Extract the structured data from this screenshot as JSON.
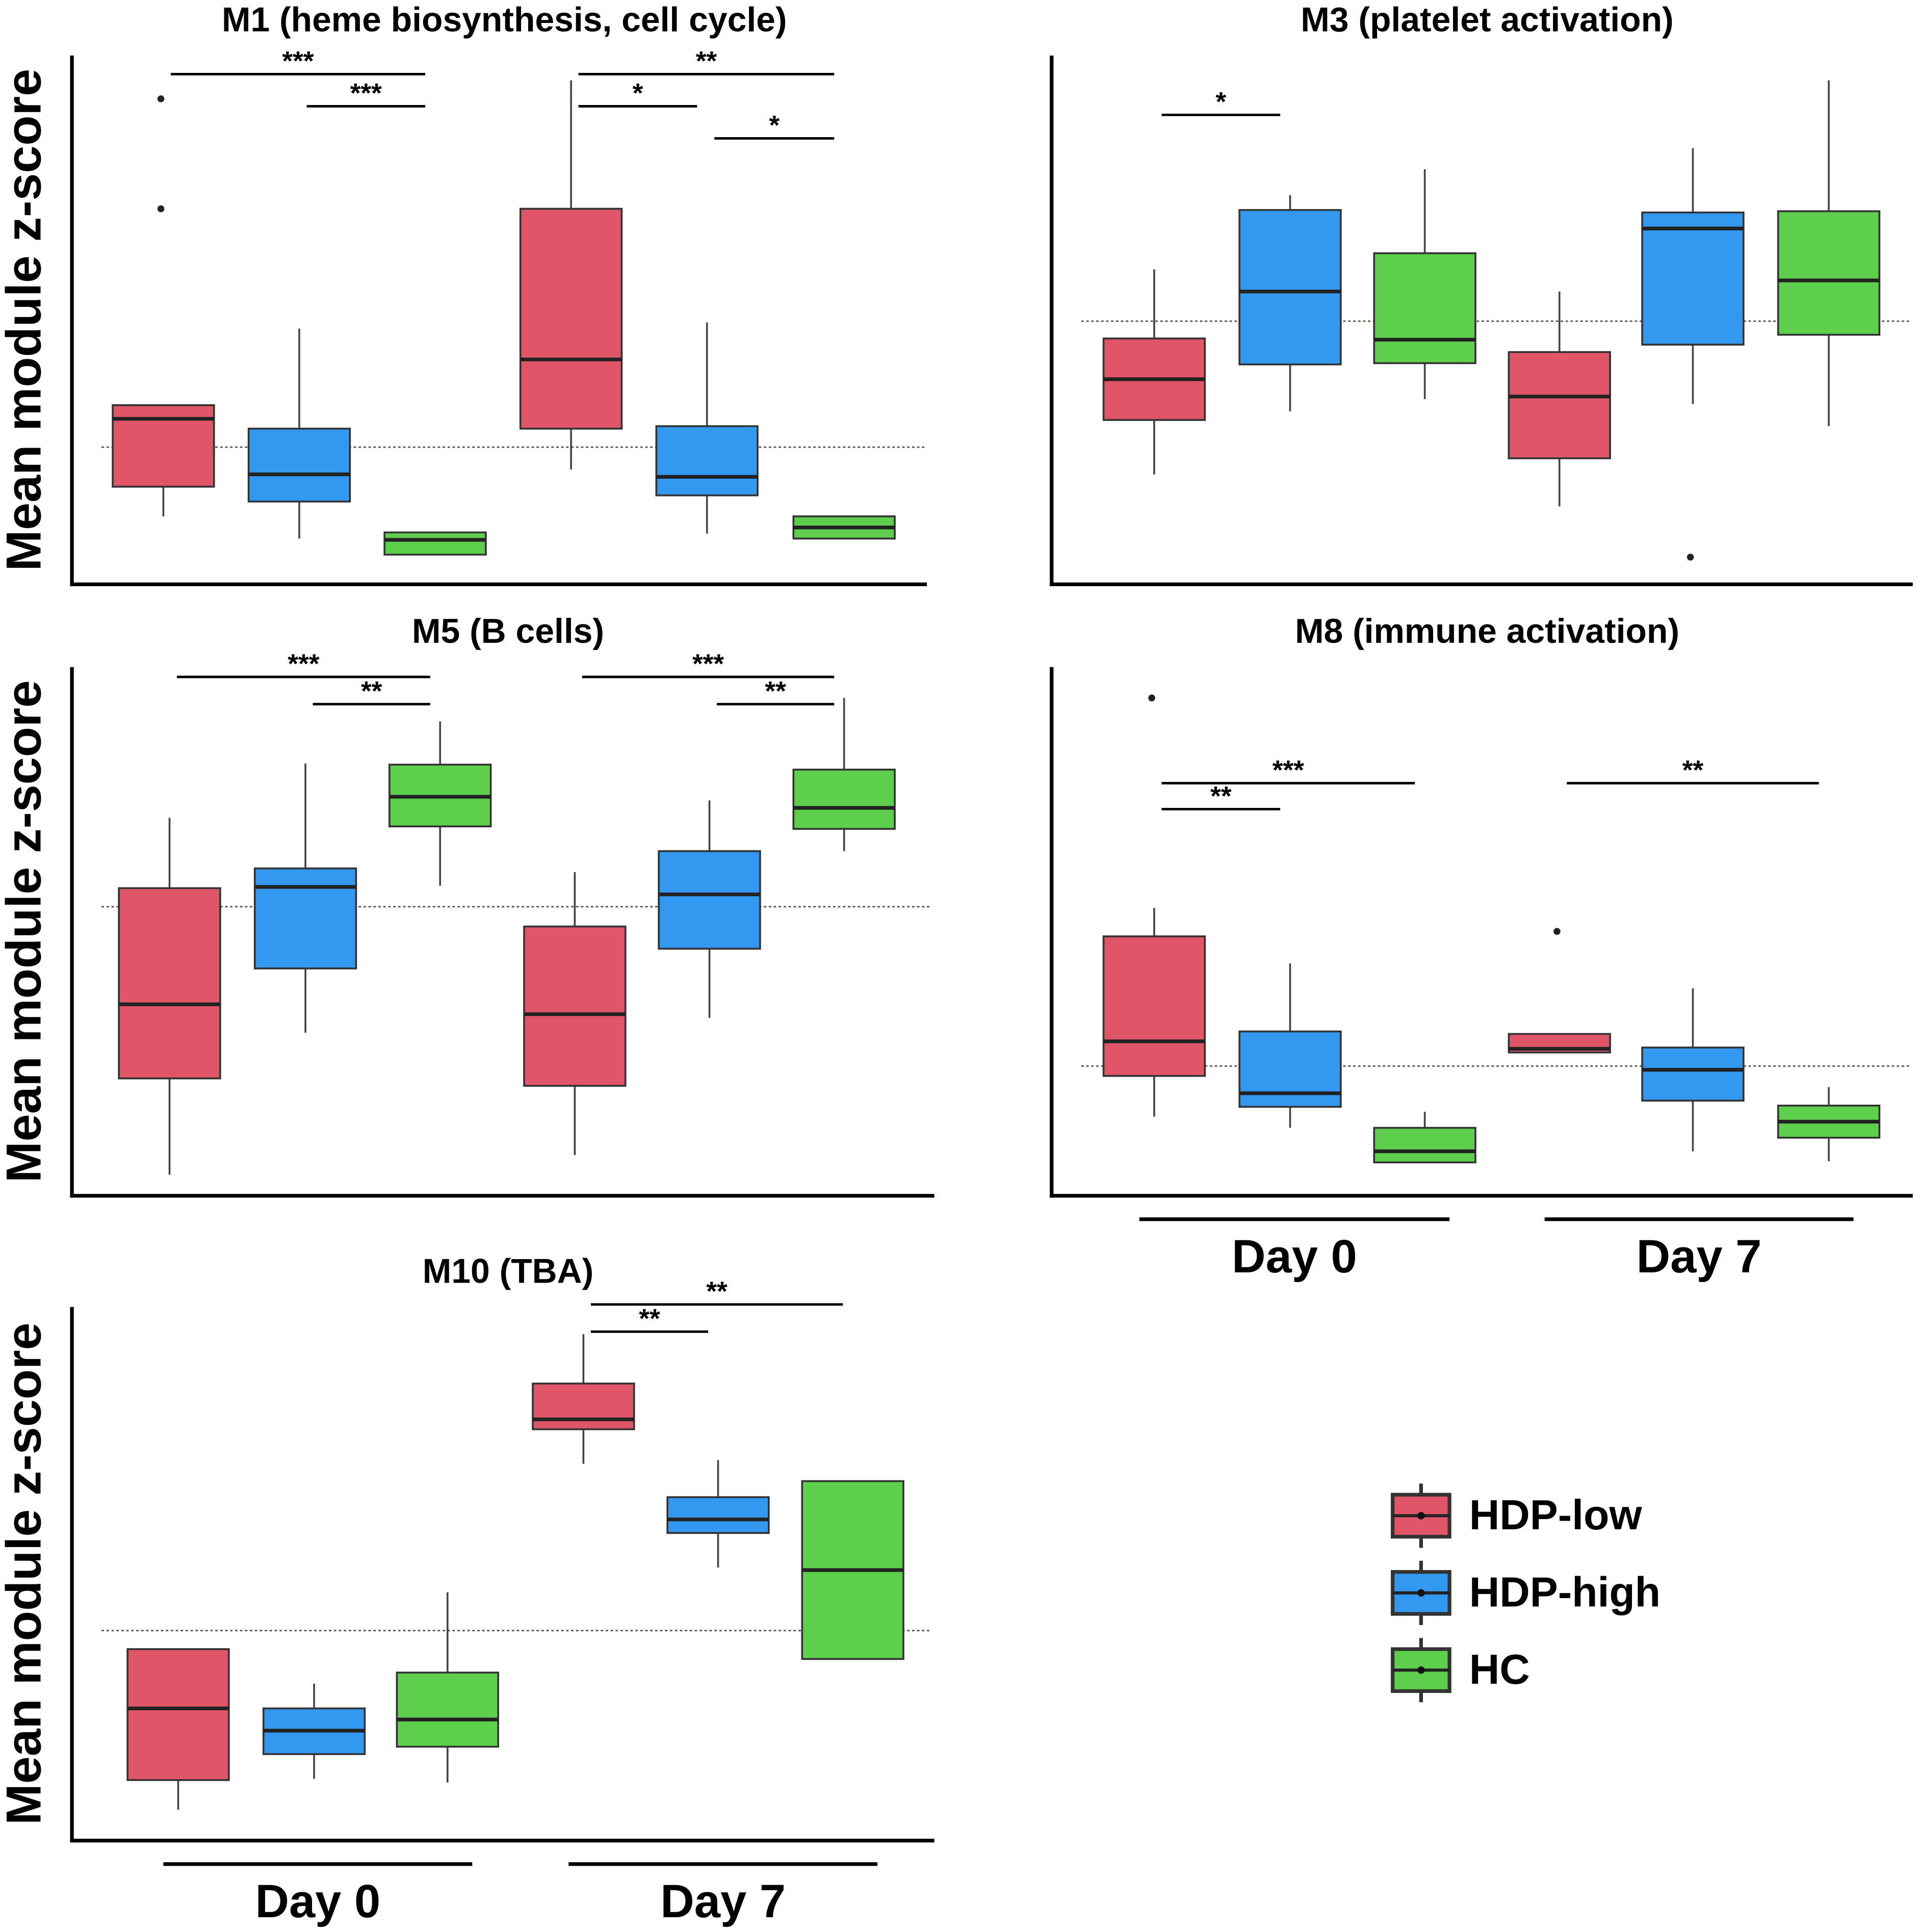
{
  "chart_data": [
    {
      "type": "box",
      "title": "M1 (heme biosynthesis, cell cycle)",
      "ylabel": "Mean module z-score",
      "ylim": [
        -1.11,
        3.17
      ],
      "hline": 0,
      "values": [
        [
          [
            -0.56,
            -0.32,
            0.23,
            0.34,
            0.34
          ],
          [
            -0.74,
            -0.44,
            -0.22,
            0.15,
            0.96
          ],
          [
            -0.87,
            -0.87,
            -0.75,
            -0.69,
            -0.69
          ]
        ],
        [
          [
            -0.18,
            0.15,
            0.71,
            1.93,
            2.97
          ],
          [
            -0.7,
            -0.39,
            -0.24,
            0.17,
            1.01
          ],
          [
            -0.74,
            -0.74,
            -0.65,
            -0.56,
            -0.56
          ]
        ]
      ],
      "outliers": [
        [
          [
            2.82,
            1.93
          ],
          [],
          []
        ],
        [
          [],
          [],
          []
        ]
      ],
      "comparisons": [
        [
          {
            "pair": [
              "HDP-low",
              "HC"
            ],
            "label": "***"
          },
          {
            "pair": [
              "HDP-high",
              "HC"
            ],
            "label": "***"
          }
        ],
        [
          {
            "pair": [
              "HDP-low",
              "HC"
            ],
            "label": "**"
          },
          {
            "pair": [
              "HDP-low",
              "HDP-high"
            ],
            "label": "*"
          },
          {
            "pair": [
              "HDP-high",
              "HC"
            ],
            "label": "*"
          }
        ]
      ]
    },
    {
      "type": "box",
      "title": "M3 (platelet activation)",
      "ylim": [
        -2.13,
        2.15
      ],
      "hline": 0,
      "values": [
        [
          [
            -1.24,
            -0.8,
            -0.47,
            -0.14,
            0.42
          ],
          [
            -0.73,
            -0.35,
            0.24,
            0.9,
            1.02
          ],
          [
            -0.63,
            -0.34,
            -0.15,
            0.55,
            1.23
          ]
        ],
        [
          [
            -1.5,
            -1.11,
            -0.61,
            -0.25,
            0.24
          ],
          [
            -0.67,
            -0.19,
            0.75,
            0.88,
            1.4
          ],
          [
            -0.85,
            -0.11,
            0.33,
            0.89,
            1.95
          ]
        ]
      ],
      "outliers": [
        [
          [],
          [],
          []
        ],
        [
          [],
          [
            -1.91
          ],
          []
        ]
      ],
      "comparisons": [
        [
          {
            "pair": [
              "HDP-low",
              "HDP-high"
            ],
            "label": "*"
          }
        ],
        []
      ]
    },
    {
      "type": "box",
      "title": "M5 (B cells)",
      "ylabel": "Mean module z-score",
      "ylim": [
        -2.34,
        1.94
      ],
      "hline": 0,
      "values": [
        [
          [
            -2.17,
            -1.39,
            -0.79,
            0.15,
            0.72
          ],
          [
            -1.02,
            -0.5,
            0.16,
            0.31,
            1.16
          ],
          [
            0.17,
            0.65,
            0.89,
            1.15,
            1.5
          ]
        ],
        [
          [
            -2.01,
            -1.45,
            -0.87,
            -0.16,
            0.28
          ],
          [
            -0.9,
            -0.34,
            0.1,
            0.45,
            0.86
          ],
          [
            0.45,
            0.63,
            0.8,
            1.11,
            1.69
          ]
        ]
      ],
      "outliers": [
        [
          [],
          [],
          []
        ],
        [
          [],
          [],
          []
        ]
      ],
      "comparisons": [
        [
          {
            "pair": [
              "HDP-low",
              "HC"
            ],
            "label": "***"
          },
          {
            "pair": [
              "HDP-high",
              "HC"
            ],
            "label": "**"
          }
        ],
        [
          {
            "pair": [
              "HDP-low",
              "HC"
            ],
            "label": "***"
          },
          {
            "pair": [
              "HDP-high",
              "HC"
            ],
            "label": "**"
          }
        ]
      ]
    },
    {
      "type": "box",
      "title": "M8 (immune activation)",
      "categories": [
        "Day 0",
        "Day 7"
      ],
      "ylim": [
        -1.05,
        3.23
      ],
      "hline": 0,
      "values": [
        [
          [
            -0.41,
            -0.08,
            0.2,
            1.05,
            1.28
          ],
          [
            -0.5,
            -0.33,
            -0.22,
            0.28,
            0.83
          ],
          [
            -0.78,
            -0.78,
            -0.69,
            -0.5,
            -0.37
          ]
        ],
        [
          [
            0.11,
            0.11,
            0.14,
            0.26,
            0.26
          ],
          [
            -0.69,
            -0.28,
            -0.03,
            0.15,
            0.63
          ],
          [
            -0.77,
            -0.58,
            -0.45,
            -0.32,
            -0.17
          ]
        ]
      ],
      "outliers": [
        [
          [
            2.98
          ],
          [],
          []
        ],
        [
          [
            1.09
          ],
          [],
          []
        ]
      ],
      "comparisons": [
        [
          {
            "pair": [
              "HDP-low",
              "HC"
            ],
            "label": "***"
          },
          {
            "pair": [
              "HDP-low",
              "HDP-high"
            ],
            "label": "**"
          }
        ],
        [
          {
            "pair": [
              "HDP-low",
              "HC"
            ],
            "label": "**"
          }
        ]
      ]
    },
    {
      "type": "box",
      "title": "M10 (TBA)",
      "ylabel": "Mean module z-score",
      "categories": [
        "Day 0",
        "Day 7"
      ],
      "ylim": [
        -1.7,
        2.62
      ],
      "hline": 0,
      "values": [
        [
          [
            -1.45,
            -1.21,
            -0.63,
            -0.15,
            -0.15
          ],
          [
            -1.2,
            -1.0,
            -0.81,
            -0.63,
            -0.43
          ],
          [
            -1.23,
            -0.94,
            -0.72,
            -0.34,
            0.31
          ]
        ],
        [
          [
            1.35,
            1.63,
            1.71,
            2.0,
            2.4
          ],
          [
            0.51,
            0.79,
            0.9,
            1.08,
            1.38
          ],
          [
            -0.23,
            -0.23,
            0.49,
            1.21,
            1.21
          ]
        ]
      ],
      "outliers": [
        [
          [],
          [],
          []
        ],
        [
          [],
          [],
          []
        ]
      ],
      "comparisons": [
        [],
        [
          {
            "pair": [
              "HDP-low",
              "HC"
            ],
            "label": "**"
          },
          {
            "pair": [
              "HDP-low",
              "HDP-high"
            ],
            "label": "**"
          }
        ]
      ]
    }
  ],
  "legend": [
    {
      "name": "HDP-low",
      "color": "#e05568"
    },
    {
      "name": "HDP-high",
      "color": "#3399f0"
    },
    {
      "name": "HC",
      "color": "#5ecf4c"
    }
  ]
}
